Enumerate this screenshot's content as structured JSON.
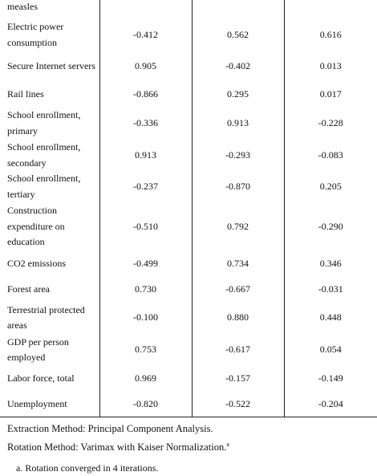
{
  "rows": [
    {
      "label": "measles",
      "v1": "",
      "v2": "",
      "v3": ""
    },
    {
      "label": "Electric power consumption",
      "v1": "-0.412",
      "v2": "0.562",
      "v3": "0.616"
    },
    {
      "label": "Secure Internet servers",
      "v1": "0.905",
      "v2": "-0.402",
      "v3": "0.013"
    },
    {
      "label": "Rail lines",
      "v1": "-0.866",
      "v2": "0.295",
      "v3": "0.017"
    },
    {
      "label": "School enrollment, primary",
      "v1": "-0.336",
      "v2": "0.913",
      "v3": "-0.228"
    },
    {
      "label": "School enrollment, secondary",
      "v1": "0.913",
      "v2": "-0.293",
      "v3": "-0.083"
    },
    {
      "label": "School enrollment, tertiary",
      "v1": "-0.237",
      "v2": "-0.870",
      "v3": "0.205"
    },
    {
      "label": "Construction expenditure on education",
      "v1": "-0.510",
      "v2": "0.792",
      "v3": "-0.290"
    },
    {
      "label": "CO2 emissions",
      "v1": "-0.499",
      "v2": "0.734",
      "v3": "0.346"
    },
    {
      "label": "Forest area",
      "v1": "0.730",
      "v2": "-0.667",
      "v3": "-0.031"
    },
    {
      "label": "Terrestrial protected areas",
      "v1": "-0.100",
      "v2": "0.880",
      "v3": "0.448"
    },
    {
      "label": "GDP per person employed",
      "v1": "0.753",
      "v2": "-0.617",
      "v3": "0.054"
    },
    {
      "label": "Labor force, total",
      "v1": "0.969",
      "v2": "-0.157",
      "v3": "-0.149"
    },
    {
      "label": "Unemployment",
      "v1": "-0.820",
      "v2": "-0.522",
      "v3": "-0.204"
    }
  ],
  "footnotes": {
    "extraction": "Extraction Method: Principal Component Analysis.",
    "rotation": "Rotation Method: Varimax with Kaiser Normalization.",
    "rotation_marker": "a",
    "note": "a. Rotation converged in 4 iterations."
  }
}
